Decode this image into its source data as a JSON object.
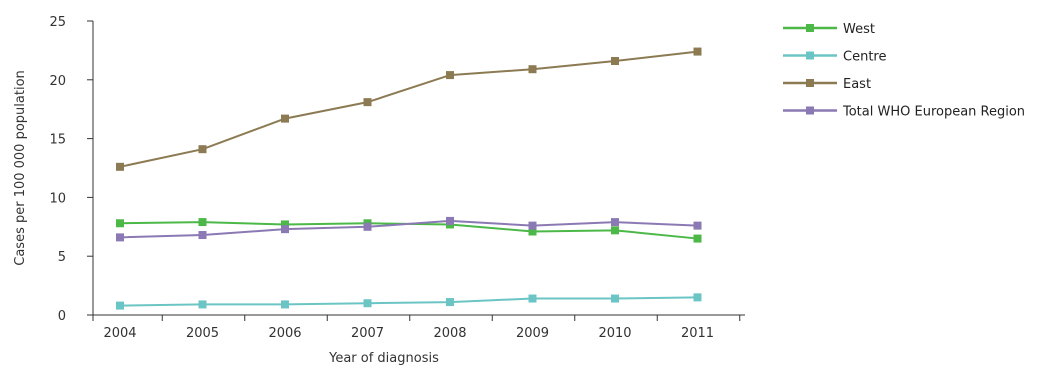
{
  "chart_data": {
    "type": "line",
    "title": "",
    "xlabel": "Year of diagnosis",
    "ylabel": "Cases per 100 000 population",
    "categories": [
      "2004",
      "2005",
      "2006",
      "2007",
      "2008",
      "2009",
      "2010",
      "2011"
    ],
    "ylim": [
      0,
      25
    ],
    "yticks": [
      0,
      5,
      10,
      15,
      20,
      25
    ],
    "grid": false,
    "legend_position": "right",
    "series": [
      {
        "name": "West",
        "color": "#4cb848",
        "values": [
          7.8,
          7.9,
          7.7,
          7.8,
          7.7,
          7.1,
          7.2,
          6.5
        ]
      },
      {
        "name": "Centre",
        "color": "#6cc5c5",
        "values": [
          0.8,
          0.9,
          0.9,
          1.0,
          1.1,
          1.4,
          1.4,
          1.5
        ]
      },
      {
        "name": "East",
        "color": "#8c7b52",
        "values": [
          12.6,
          14.1,
          16.7,
          18.1,
          20.4,
          20.9,
          21.6,
          22.4
        ]
      },
      {
        "name": "Total WHO European Region",
        "color": "#8b79b4",
        "values": [
          6.6,
          6.8,
          7.3,
          7.5,
          8.0,
          7.6,
          7.9,
          7.6
        ]
      }
    ]
  }
}
